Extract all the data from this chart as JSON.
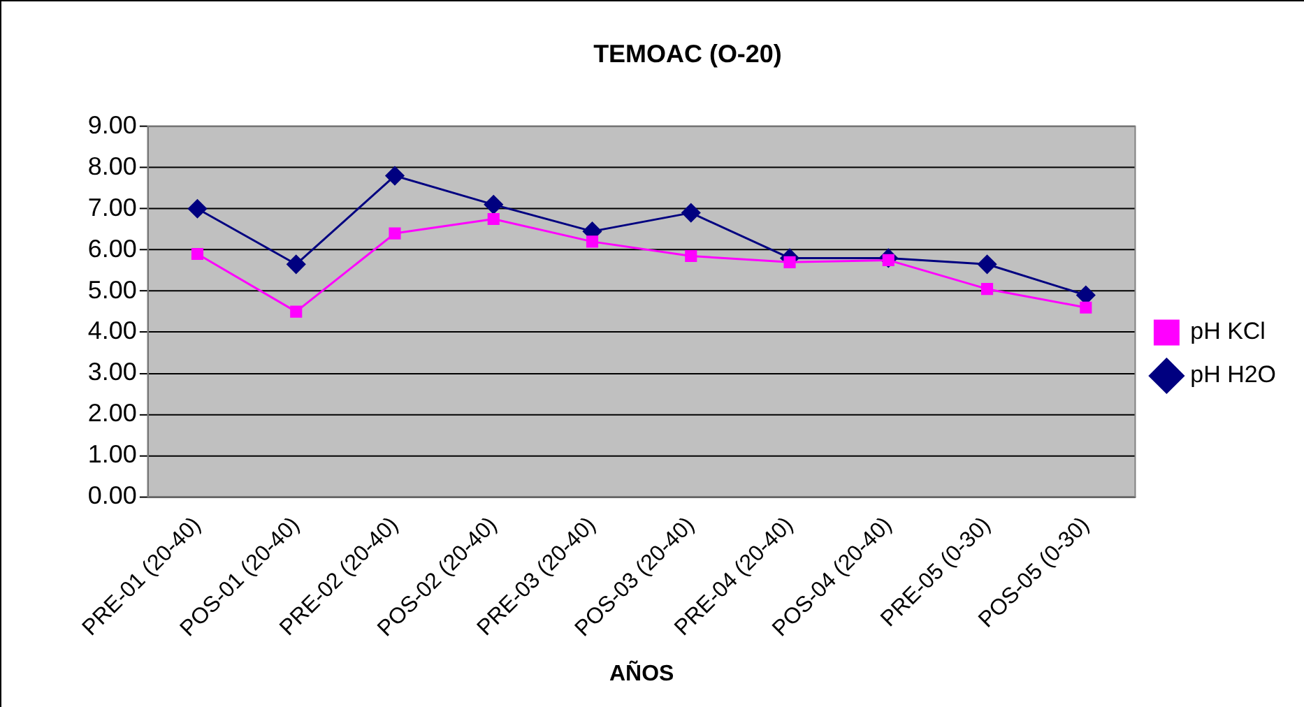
{
  "chart_data": {
    "type": "line",
    "title": "TEMOAC (O-20)",
    "xlabel": "AÑOS",
    "categories": [
      "PRE-01 (20-40)",
      "POS-01 (20-40)",
      "PRE-02 (20-40)",
      "POS-02 (20-40)",
      "PRE-03 (20-40)",
      "POS-03 (20-40)",
      "PRE-04 (20-40)",
      "POS-04 (20-40)",
      "PRE-05 (0-30)",
      "POS-05 (0-30)"
    ],
    "series": [
      {
        "name": "pH H2O",
        "color": "#000080",
        "marker": "diamond",
        "values": [
          7.0,
          5.65,
          7.8,
          7.1,
          6.45,
          6.9,
          5.8,
          5.8,
          5.65,
          4.9
        ]
      },
      {
        "name": "pH KCl",
        "color": "#ff00ff",
        "marker": "square",
        "values": [
          5.9,
          4.5,
          6.4,
          6.75,
          6.2,
          5.85,
          5.7,
          5.75,
          5.05,
          4.6
        ]
      }
    ],
    "ylim": [
      0,
      9
    ],
    "yticks": [
      {
        "value": 0,
        "label": "0.00"
      },
      {
        "value": 1,
        "label": "1.00"
      },
      {
        "value": 2,
        "label": "2.00"
      },
      {
        "value": 3,
        "label": "3.00"
      },
      {
        "value": 4,
        "label": "4.00"
      },
      {
        "value": 5,
        "label": "5.00"
      },
      {
        "value": 6,
        "label": "6.00"
      },
      {
        "value": 7,
        "label": "7.00"
      },
      {
        "value": 8,
        "label": "8.00"
      },
      {
        "value": 9,
        "label": "9.00"
      }
    ],
    "grid": "y",
    "legend": "right",
    "line_style": "solid"
  }
}
